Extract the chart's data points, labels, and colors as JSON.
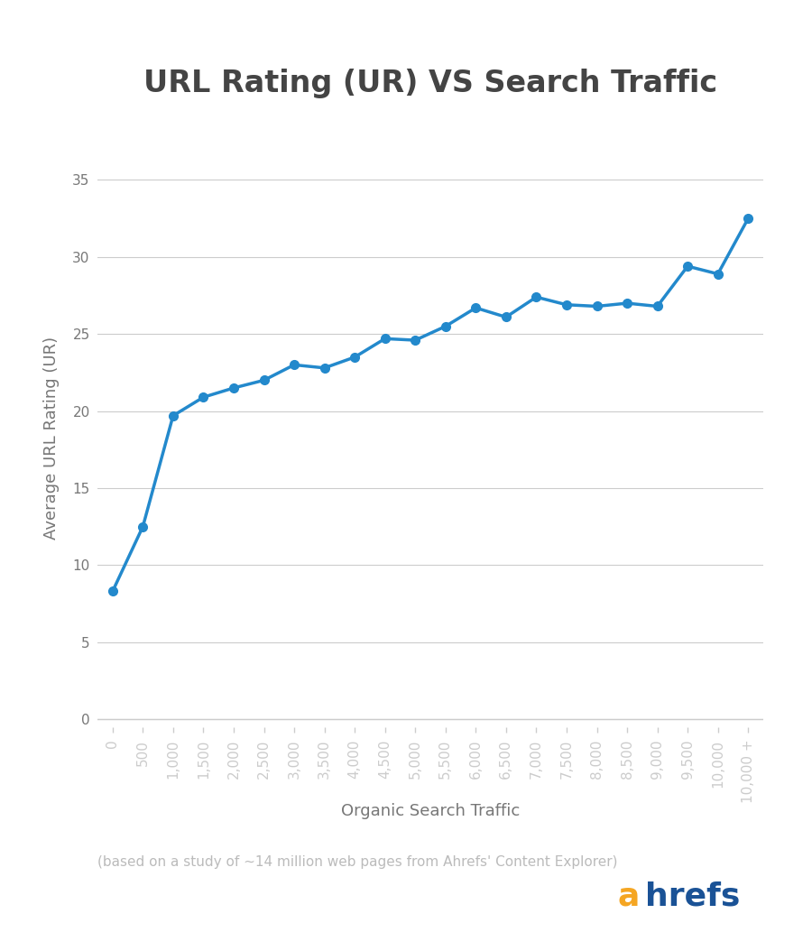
{
  "title": "URL Rating (UR) VS Search Traffic",
  "xlabel": "Organic Search Traffic",
  "ylabel": "Average URL Rating (UR)",
  "subtitle": "(based on a study of ~14 million web pages from Ahrefs' Content Explorer)",
  "x_labels": [
    "0",
    "500",
    "1,000",
    "1,500",
    "2,000",
    "2,500",
    "3,000",
    "3,500",
    "4,000",
    "4,500",
    "5,000",
    "5,500",
    "6,000",
    "6,500",
    "7,000",
    "7,500",
    "8,000",
    "8,500",
    "9,000",
    "9,500",
    "10,000",
    "10,000 +"
  ],
  "x_values": [
    0,
    1,
    2,
    3,
    4,
    5,
    6,
    7,
    8,
    9,
    10,
    11,
    12,
    13,
    14,
    15,
    16,
    17,
    18,
    19,
    20,
    21
  ],
  "y_values": [
    8.3,
    12.5,
    19.7,
    20.9,
    21.5,
    22.0,
    23.0,
    22.8,
    23.5,
    24.7,
    24.6,
    25.5,
    26.7,
    26.1,
    27.4,
    26.9,
    26.8,
    27.0,
    26.8,
    29.4,
    28.9,
    32.5
  ],
  "line_color": "#2389cc",
  "marker_color": "#2389cc",
  "background_color": "#ffffff",
  "grid_color": "#cccccc",
  "axis_color": "#cccccc",
  "title_color": "#444444",
  "label_color": "#777777",
  "subtitle_color": "#bbbbbb",
  "yticks": [
    0,
    5,
    10,
    15,
    20,
    25,
    30,
    35
  ],
  "ylim": [
    -0.5,
    37
  ],
  "xlim": [
    -0.5,
    21.5
  ],
  "ahrefs_a_color": "#f5a623",
  "ahrefs_hrefs_color": "#1a5296",
  "title_fontsize": 24,
  "axis_label_fontsize": 13,
  "tick_fontsize": 11,
  "subtitle_fontsize": 11
}
